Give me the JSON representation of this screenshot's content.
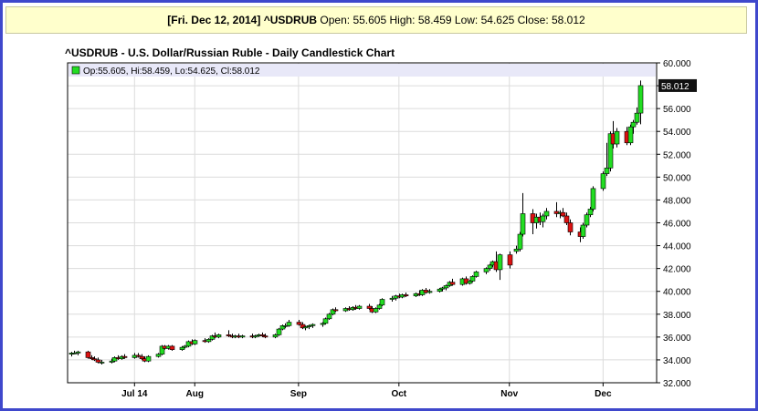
{
  "header": {
    "date": "[Fri. Dec 12, 2014]",
    "symbol": "^USDRUB",
    "open_label": "Open:",
    "open": "55.605",
    "high_label": "High:",
    "high": "58.459",
    "low_label": "Low:",
    "low": "54.625",
    "close_label": "Close:",
    "close": "58.012"
  },
  "colors": {
    "up": "#22dd22",
    "down": "#dd1111",
    "frame": "#3f48cc",
    "legend_bg": "#e8e8f8",
    "last_price_bg": "#111111"
  },
  "chart_data": {
    "type": "candlestick",
    "title": "^USDRUB - U.S. Dollar/Russian Ruble - Daily Candlestick Chart",
    "legend": "Op:55.605, Hi:58.459, Lo:54.625, Cl:58.012",
    "last_price": "58.012",
    "ylim": [
      32,
      60
    ],
    "y_ticks": [
      "32.000",
      "34.000",
      "36.000",
      "38.000",
      "40.000",
      "42.000",
      "44.000",
      "46.000",
      "48.000",
      "50.000",
      "52.000",
      "54.000",
      "56.000",
      "58.000",
      "60.000"
    ],
    "x_ticks": [
      {
        "label": "Jul 14",
        "date": "2014-07-14"
      },
      {
        "label": "Aug",
        "date": "2014-08-01"
      },
      {
        "label": "Sep",
        "date": "2014-09-01"
      },
      {
        "label": "Oct",
        "date": "2014-10-01"
      },
      {
        "label": "Nov",
        "date": "2014-11-03"
      },
      {
        "label": "Dec",
        "date": "2014-12-01"
      }
    ],
    "x_range": [
      "2014-06-24",
      "2014-12-17"
    ],
    "candles": [
      {
        "date": "2014-06-25",
        "o": 34.5,
        "h": 34.7,
        "l": 34.3,
        "c": 34.6
      },
      {
        "date": "2014-06-26",
        "o": 34.6,
        "h": 34.8,
        "l": 34.5,
        "c": 34.6
      },
      {
        "date": "2014-06-27",
        "o": 34.6,
        "h": 34.8,
        "l": 34.4,
        "c": 34.7
      },
      {
        "date": "2014-06-30",
        "o": 34.7,
        "h": 34.8,
        "l": 34.1,
        "c": 34.2
      },
      {
        "date": "2014-07-01",
        "o": 34.2,
        "h": 34.4,
        "l": 34.0,
        "c": 34.1
      },
      {
        "date": "2014-07-02",
        "o": 34.1,
        "h": 34.3,
        "l": 33.9,
        "c": 34.0
      },
      {
        "date": "2014-07-03",
        "o": 34.0,
        "h": 34.2,
        "l": 33.7,
        "c": 33.8
      },
      {
        "date": "2014-07-04",
        "o": 33.8,
        "h": 34.0,
        "l": 33.6,
        "c": 33.8
      },
      {
        "date": "2014-07-07",
        "o": 33.8,
        "h": 34.1,
        "l": 33.7,
        "c": 33.9
      },
      {
        "date": "2014-07-08",
        "o": 33.9,
        "h": 34.3,
        "l": 33.8,
        "c": 34.2
      },
      {
        "date": "2014-07-09",
        "o": 34.2,
        "h": 34.4,
        "l": 34.0,
        "c": 34.1
      },
      {
        "date": "2014-07-10",
        "o": 34.1,
        "h": 34.4,
        "l": 34.0,
        "c": 34.3
      },
      {
        "date": "2014-07-11",
        "o": 34.3,
        "h": 34.5,
        "l": 34.1,
        "c": 34.2
      },
      {
        "date": "2014-07-14",
        "o": 34.2,
        "h": 34.6,
        "l": 34.1,
        "c": 34.4
      },
      {
        "date": "2014-07-15",
        "o": 34.4,
        "h": 34.6,
        "l": 34.2,
        "c": 34.3
      },
      {
        "date": "2014-07-16",
        "o": 34.3,
        "h": 34.5,
        "l": 34.0,
        "c": 34.1
      },
      {
        "date": "2014-07-17",
        "o": 34.1,
        "h": 34.3,
        "l": 33.8,
        "c": 33.9
      },
      {
        "date": "2014-07-18",
        "o": 33.9,
        "h": 34.4,
        "l": 33.8,
        "c": 34.3
      },
      {
        "date": "2014-07-21",
        "o": 34.3,
        "h": 34.6,
        "l": 34.2,
        "c": 34.5
      },
      {
        "date": "2014-07-22",
        "o": 34.5,
        "h": 35.3,
        "l": 34.4,
        "c": 35.2
      },
      {
        "date": "2014-07-23",
        "o": 35.2,
        "h": 35.3,
        "l": 34.9,
        "c": 35.0
      },
      {
        "date": "2014-07-24",
        "o": 35.0,
        "h": 35.3,
        "l": 34.9,
        "c": 35.2
      },
      {
        "date": "2014-07-25",
        "o": 35.2,
        "h": 35.3,
        "l": 34.8,
        "c": 34.9
      },
      {
        "date": "2014-07-28",
        "o": 34.9,
        "h": 35.2,
        "l": 34.8,
        "c": 35.1
      },
      {
        "date": "2014-07-29",
        "o": 35.1,
        "h": 35.3,
        "l": 35.0,
        "c": 35.2
      },
      {
        "date": "2014-07-30",
        "o": 35.2,
        "h": 35.7,
        "l": 35.1,
        "c": 35.6
      },
      {
        "date": "2014-07-31",
        "o": 35.6,
        "h": 35.8,
        "l": 35.3,
        "c": 35.4
      },
      {
        "date": "2014-08-01",
        "o": 35.4,
        "h": 35.8,
        "l": 35.3,
        "c": 35.7
      },
      {
        "date": "2014-08-04",
        "o": 35.7,
        "h": 35.9,
        "l": 35.5,
        "c": 35.6
      },
      {
        "date": "2014-08-05",
        "o": 35.6,
        "h": 35.9,
        "l": 35.5,
        "c": 35.8
      },
      {
        "date": "2014-08-06",
        "o": 35.8,
        "h": 36.2,
        "l": 35.7,
        "c": 36.1
      },
      {
        "date": "2014-08-07",
        "o": 36.1,
        "h": 36.4,
        "l": 35.9,
        "c": 36.0
      },
      {
        "date": "2014-08-08",
        "o": 36.0,
        "h": 36.3,
        "l": 35.9,
        "c": 36.2
      },
      {
        "date": "2014-08-11",
        "o": 36.2,
        "h": 36.6,
        "l": 36.0,
        "c": 36.1
      },
      {
        "date": "2014-08-12",
        "o": 36.1,
        "h": 36.3,
        "l": 35.9,
        "c": 36.0
      },
      {
        "date": "2014-08-13",
        "o": 36.0,
        "h": 36.2,
        "l": 35.9,
        "c": 36.1
      },
      {
        "date": "2014-08-14",
        "o": 36.1,
        "h": 36.3,
        "l": 35.9,
        "c": 36.0
      },
      {
        "date": "2014-08-15",
        "o": 36.0,
        "h": 36.2,
        "l": 35.9,
        "c": 36.1
      },
      {
        "date": "2014-08-18",
        "o": 36.1,
        "h": 36.3,
        "l": 35.9,
        "c": 36.0
      },
      {
        "date": "2014-08-19",
        "o": 36.0,
        "h": 36.2,
        "l": 35.9,
        "c": 36.1
      },
      {
        "date": "2014-08-20",
        "o": 36.1,
        "h": 36.3,
        "l": 36.0,
        "c": 36.2
      },
      {
        "date": "2014-08-21",
        "o": 36.2,
        "h": 36.4,
        "l": 36.0,
        "c": 36.1
      },
      {
        "date": "2014-08-22",
        "o": 36.1,
        "h": 36.3,
        "l": 35.9,
        "c": 36.0
      },
      {
        "date": "2014-08-25",
        "o": 36.0,
        "h": 36.3,
        "l": 35.9,
        "c": 36.2
      },
      {
        "date": "2014-08-26",
        "o": 36.2,
        "h": 36.8,
        "l": 36.1,
        "c": 36.7
      },
      {
        "date": "2014-08-27",
        "o": 36.7,
        "h": 37.1,
        "l": 36.6,
        "c": 37.0
      },
      {
        "date": "2014-08-28",
        "o": 37.0,
        "h": 37.2,
        "l": 36.8,
        "c": 37.0
      },
      {
        "date": "2014-08-29",
        "o": 37.0,
        "h": 37.5,
        "l": 36.9,
        "c": 37.3
      },
      {
        "date": "2014-09-01",
        "o": 37.3,
        "h": 37.5,
        "l": 37.0,
        "c": 37.1
      },
      {
        "date": "2014-09-02",
        "o": 37.1,
        "h": 37.3,
        "l": 36.7,
        "c": 36.8
      },
      {
        "date": "2014-09-03",
        "o": 36.8,
        "h": 37.0,
        "l": 36.6,
        "c": 36.9
      },
      {
        "date": "2014-09-04",
        "o": 36.9,
        "h": 37.1,
        "l": 36.7,
        "c": 37.0
      },
      {
        "date": "2014-09-05",
        "o": 37.0,
        "h": 37.2,
        "l": 36.8,
        "c": 37.1
      },
      {
        "date": "2014-09-08",
        "o": 37.1,
        "h": 37.3,
        "l": 36.9,
        "c": 37.2
      },
      {
        "date": "2014-09-09",
        "o": 37.2,
        "h": 37.7,
        "l": 37.1,
        "c": 37.6
      },
      {
        "date": "2014-09-10",
        "o": 37.6,
        "h": 38.1,
        "l": 37.5,
        "c": 38.0
      },
      {
        "date": "2014-09-11",
        "o": 38.0,
        "h": 38.5,
        "l": 37.9,
        "c": 38.4
      },
      {
        "date": "2014-09-12",
        "o": 38.4,
        "h": 38.6,
        "l": 38.2,
        "c": 38.3
      },
      {
        "date": "2014-09-15",
        "o": 38.3,
        "h": 38.6,
        "l": 38.2,
        "c": 38.5
      },
      {
        "date": "2014-09-16",
        "o": 38.5,
        "h": 38.7,
        "l": 38.3,
        "c": 38.4
      },
      {
        "date": "2014-09-17",
        "o": 38.4,
        "h": 38.7,
        "l": 38.3,
        "c": 38.6
      },
      {
        "date": "2014-09-18",
        "o": 38.6,
        "h": 38.8,
        "l": 38.4,
        "c": 38.5
      },
      {
        "date": "2014-09-19",
        "o": 38.5,
        "h": 38.8,
        "l": 38.4,
        "c": 38.7
      },
      {
        "date": "2014-09-22",
        "o": 38.7,
        "h": 38.9,
        "l": 38.4,
        "c": 38.5
      },
      {
        "date": "2014-09-23",
        "o": 38.5,
        "h": 38.7,
        "l": 38.1,
        "c": 38.2
      },
      {
        "date": "2014-09-24",
        "o": 38.2,
        "h": 38.6,
        "l": 38.1,
        "c": 38.5
      },
      {
        "date": "2014-09-25",
        "o": 38.5,
        "h": 38.9,
        "l": 38.4,
        "c": 38.8
      },
      {
        "date": "2014-09-26",
        "o": 38.8,
        "h": 39.4,
        "l": 38.7,
        "c": 39.3
      },
      {
        "date": "2014-09-29",
        "o": 39.3,
        "h": 39.6,
        "l": 39.1,
        "c": 39.4
      },
      {
        "date": "2014-09-30",
        "o": 39.4,
        "h": 39.7,
        "l": 39.2,
        "c": 39.6
      },
      {
        "date": "2014-10-01",
        "o": 39.6,
        "h": 39.8,
        "l": 39.4,
        "c": 39.5
      },
      {
        "date": "2014-10-02",
        "o": 39.5,
        "h": 39.8,
        "l": 39.4,
        "c": 39.7
      },
      {
        "date": "2014-10-03",
        "o": 39.7,
        "h": 39.9,
        "l": 39.5,
        "c": 39.6
      },
      {
        "date": "2014-10-06",
        "o": 39.6,
        "h": 39.9,
        "l": 39.5,
        "c": 39.8
      },
      {
        "date": "2014-10-07",
        "o": 39.8,
        "h": 40.1,
        "l": 39.6,
        "c": 39.7
      },
      {
        "date": "2014-10-08",
        "o": 39.7,
        "h": 40.2,
        "l": 39.6,
        "c": 40.1
      },
      {
        "date": "2014-10-09",
        "o": 40.1,
        "h": 40.3,
        "l": 39.8,
        "c": 39.9
      },
      {
        "date": "2014-10-10",
        "o": 39.9,
        "h": 40.2,
        "l": 39.8,
        "c": 40.0
      },
      {
        "date": "2014-10-13",
        "o": 40.0,
        "h": 40.3,
        "l": 39.9,
        "c": 40.2
      },
      {
        "date": "2014-10-14",
        "o": 40.2,
        "h": 40.4,
        "l": 40.0,
        "c": 40.3
      },
      {
        "date": "2014-10-15",
        "o": 40.3,
        "h": 40.6,
        "l": 40.1,
        "c": 40.5
      },
      {
        "date": "2014-10-16",
        "o": 40.5,
        "h": 40.9,
        "l": 40.4,
        "c": 40.8
      },
      {
        "date": "2014-10-17",
        "o": 40.8,
        "h": 41.1,
        "l": 40.5,
        "c": 40.6
      },
      {
        "date": "2014-10-20",
        "o": 40.6,
        "h": 41.2,
        "l": 40.5,
        "c": 41.1
      },
      {
        "date": "2014-10-21",
        "o": 41.1,
        "h": 41.3,
        "l": 40.6,
        "c": 40.7
      },
      {
        "date": "2014-10-22",
        "o": 40.7,
        "h": 41.0,
        "l": 40.6,
        "c": 40.9
      },
      {
        "date": "2014-10-23",
        "o": 40.9,
        "h": 41.4,
        "l": 40.8,
        "c": 41.3
      },
      {
        "date": "2014-10-24",
        "o": 41.3,
        "h": 41.8,
        "l": 41.2,
        "c": 41.7
      },
      {
        "date": "2014-10-27",
        "o": 41.7,
        "h": 42.1,
        "l": 41.5,
        "c": 42.0
      },
      {
        "date": "2014-10-28",
        "o": 42.0,
        "h": 42.4,
        "l": 41.8,
        "c": 42.3
      },
      {
        "date": "2014-10-29",
        "o": 42.3,
        "h": 42.7,
        "l": 42.1,
        "c": 42.6
      },
      {
        "date": "2014-10-30",
        "o": 42.6,
        "h": 43.5,
        "l": 41.7,
        "c": 41.9
      },
      {
        "date": "2014-10-31",
        "o": 41.9,
        "h": 43.3,
        "l": 41.0,
        "c": 43.2
      },
      {
        "date": "2014-11-03",
        "o": 43.2,
        "h": 43.5,
        "l": 42.0,
        "c": 42.3
      },
      {
        "date": "2014-11-05",
        "o": 43.5,
        "h": 44.0,
        "l": 43.3,
        "c": 43.7
      },
      {
        "date": "2014-11-06",
        "o": 43.7,
        "h": 45.2,
        "l": 43.5,
        "c": 45.0
      },
      {
        "date": "2014-11-07",
        "o": 45.0,
        "h": 48.6,
        "l": 44.8,
        "c": 46.8
      },
      {
        "date": "2014-11-10",
        "o": 46.8,
        "h": 47.2,
        "l": 45.0,
        "c": 46.0
      },
      {
        "date": "2014-11-11",
        "o": 46.0,
        "h": 46.8,
        "l": 45.5,
        "c": 46.5
      },
      {
        "date": "2014-11-12",
        "o": 46.5,
        "h": 46.9,
        "l": 45.8,
        "c": 46.1
      },
      {
        "date": "2014-11-13",
        "o": 46.1,
        "h": 46.8,
        "l": 45.6,
        "c": 46.6
      },
      {
        "date": "2014-11-14",
        "o": 46.6,
        "h": 47.3,
        "l": 46.3,
        "c": 47.0
      },
      {
        "date": "2014-11-17",
        "o": 47.0,
        "h": 47.8,
        "l": 46.5,
        "c": 46.8
      },
      {
        "date": "2014-11-18",
        "o": 46.8,
        "h": 47.1,
        "l": 46.4,
        "c": 46.9
      },
      {
        "date": "2014-11-19",
        "o": 46.9,
        "h": 47.3,
        "l": 46.5,
        "c": 46.6
      },
      {
        "date": "2014-11-20",
        "o": 46.6,
        "h": 46.9,
        "l": 45.8,
        "c": 46.0
      },
      {
        "date": "2014-11-21",
        "o": 46.0,
        "h": 46.3,
        "l": 44.9,
        "c": 45.2
      },
      {
        "date": "2014-11-24",
        "o": 45.2,
        "h": 45.6,
        "l": 44.3,
        "c": 44.8
      },
      {
        "date": "2014-11-25",
        "o": 44.8,
        "h": 46.0,
        "l": 44.6,
        "c": 45.8
      },
      {
        "date": "2014-11-26",
        "o": 45.8,
        "h": 46.9,
        "l": 45.6,
        "c": 46.7
      },
      {
        "date": "2014-11-27",
        "o": 46.7,
        "h": 47.4,
        "l": 46.5,
        "c": 47.2
      },
      {
        "date": "2014-11-28",
        "o": 47.2,
        "h": 49.2,
        "l": 47.0,
        "c": 49.0
      },
      {
        "date": "2014-12-01",
        "o": 49.0,
        "h": 50.5,
        "l": 48.8,
        "c": 50.3
      },
      {
        "date": "2014-12-02",
        "o": 50.3,
        "h": 53.0,
        "l": 50.1,
        "c": 50.8
      },
      {
        "date": "2014-12-03",
        "o": 50.8,
        "h": 54.0,
        "l": 50.5,
        "c": 53.8
      },
      {
        "date": "2014-12-04",
        "o": 53.8,
        "h": 54.9,
        "l": 52.5,
        "c": 52.9
      },
      {
        "date": "2014-12-05",
        "o": 52.9,
        "h": 54.3,
        "l": 52.6,
        "c": 54.0
      },
      {
        "date": "2014-12-08",
        "o": 54.0,
        "h": 54.4,
        "l": 52.8,
        "c": 53.0
      },
      {
        "date": "2014-12-09",
        "o": 53.0,
        "h": 54.6,
        "l": 52.8,
        "c": 54.4
      },
      {
        "date": "2014-12-10",
        "o": 54.4,
        "h": 55.0,
        "l": 53.8,
        "c": 54.8
      },
      {
        "date": "2014-12-11",
        "o": 54.8,
        "h": 56.1,
        "l": 54.6,
        "c": 55.6
      },
      {
        "date": "2014-12-12",
        "o": 55.605,
        "h": 58.459,
        "l": 54.625,
        "c": 58.012
      }
    ]
  }
}
